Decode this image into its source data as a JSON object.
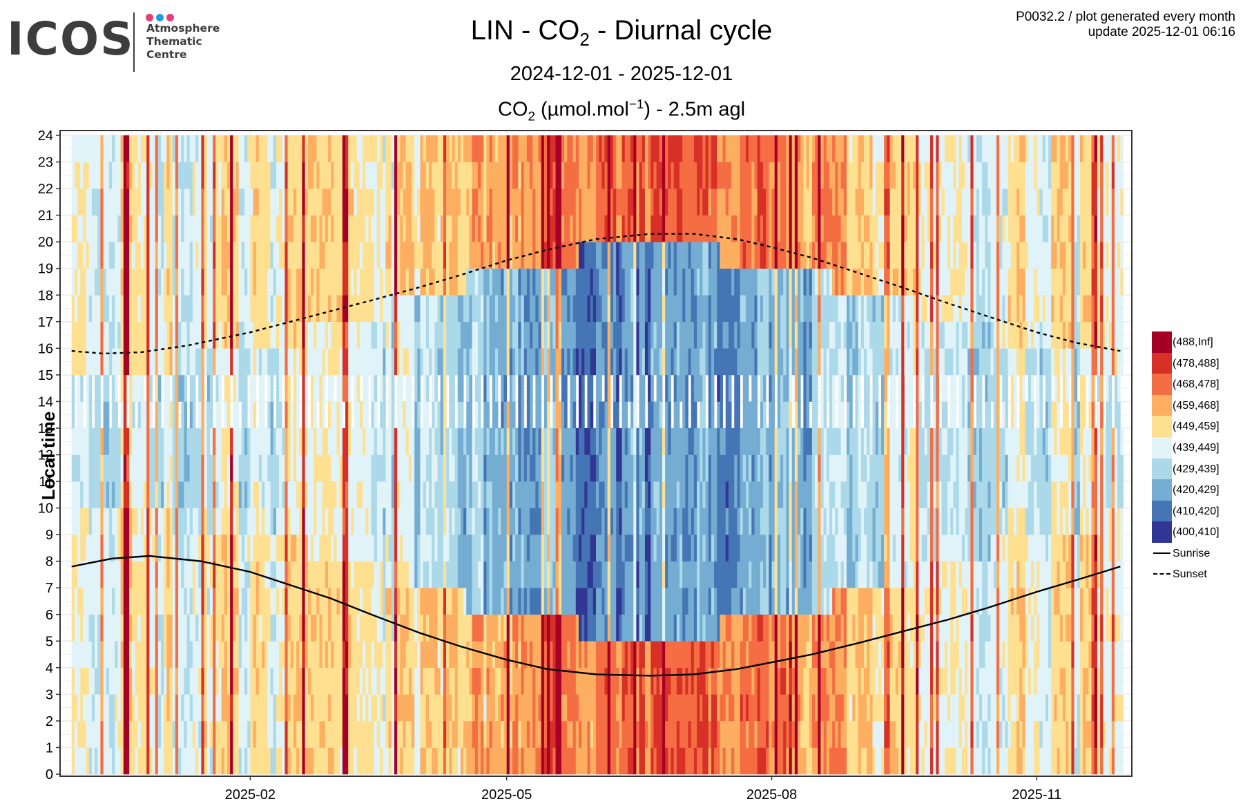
{
  "header": {
    "logo": {
      "wordmark": "ICOS",
      "subtitle_lines": [
        "Atmosphere",
        "Thematic",
        "Centre"
      ],
      "dot_colors": [
        "#e63c7a",
        "#1e9be6",
        "#e63c7a"
      ]
    },
    "meta_line1": "P0032.2 / plot generated every month",
    "meta_line2": "update  2025-12-01 06:16"
  },
  "chart_data": {
    "type": "heatmap",
    "title": "LIN - CO2 - Diurnal cycle",
    "title_parts": {
      "pre": "LIN - CO",
      "sub": "2",
      "post": " - Diurnal cycle"
    },
    "subtitle": "2024-12-01 - 2025-12-01",
    "variable_label": "CO2 (µmol.mol-1) - 2.5m agl",
    "variable_parts": {
      "pre": "CO",
      "sub": "2",
      "mid": " (µmol.mol",
      "sup": "−1",
      "post": ") - 2.5m agl"
    },
    "xlabel": "",
    "ylabel": "Local time",
    "x_start_date": "2024-12-01",
    "x_end_date": "2025-11-30",
    "xlim": [
      "2024-11-27",
      "2025-12-04"
    ],
    "ylim": [
      0,
      24
    ],
    "x_ticks": [
      {
        "date": "2025-02-01",
        "label": "2025-02"
      },
      {
        "date": "2025-05-01",
        "label": "2025-05"
      },
      {
        "date": "2025-08-01",
        "label": "2025-08"
      },
      {
        "date": "2025-11-01",
        "label": "2025-11"
      }
    ],
    "y_ticks": [
      0,
      1,
      2,
      3,
      4,
      5,
      6,
      7,
      8,
      9,
      10,
      11,
      12,
      13,
      14,
      15,
      16,
      17,
      18,
      19,
      20,
      21,
      22,
      23,
      24
    ],
    "grid": true,
    "legend_position": "right",
    "classes": [
      {
        "label": "(400,410]",
        "color": "#313695"
      },
      {
        "label": "(410,420]",
        "color": "#4575b4"
      },
      {
        "label": "(420,429]",
        "color": "#74add1"
      },
      {
        "label": "(429,439]",
        "color": "#abd9e9"
      },
      {
        "label": "(439,449]",
        "color": "#e0f3f8"
      },
      {
        "label": "(449,459]",
        "color": "#fee090"
      },
      {
        "label": "(459,468]",
        "color": "#fdae61"
      },
      {
        "label": "(468,478]",
        "color": "#f46d43"
      },
      {
        "label": "(478,488]",
        "color": "#d73027"
      },
      {
        "label": "(488,Inf]",
        "color": "#a50026"
      }
    ],
    "legend_order": [
      9,
      8,
      7,
      6,
      5,
      4,
      3,
      2,
      1,
      0
    ],
    "lines": [
      {
        "name": "Sunrise",
        "style": "solid",
        "points": [
          [
            "2024-12-01",
            7.8
          ],
          [
            "2024-12-15",
            8.1
          ],
          [
            "2024-12-28",
            8.2
          ],
          [
            "2025-01-15",
            8.0
          ],
          [
            "2025-02-01",
            7.6
          ],
          [
            "2025-02-15",
            7.1
          ],
          [
            "2025-03-01",
            6.6
          ],
          [
            "2025-03-15",
            6.0
          ],
          [
            "2025-04-01",
            5.3
          ],
          [
            "2025-04-15",
            4.8
          ],
          [
            "2025-05-01",
            4.3
          ],
          [
            "2025-05-15",
            3.95
          ],
          [
            "2025-06-01",
            3.75
          ],
          [
            "2025-06-20",
            3.7
          ],
          [
            "2025-07-05",
            3.75
          ],
          [
            "2025-07-20",
            3.95
          ],
          [
            "2025-08-01",
            4.2
          ],
          [
            "2025-08-15",
            4.5
          ],
          [
            "2025-09-01",
            4.95
          ],
          [
            "2025-09-15",
            5.35
          ],
          [
            "2025-10-01",
            5.8
          ],
          [
            "2025-10-15",
            6.25
          ],
          [
            "2025-11-01",
            6.85
          ],
          [
            "2025-11-15",
            7.3
          ],
          [
            "2025-11-30",
            7.8
          ]
        ]
      },
      {
        "name": "Sunset",
        "style": "dashed",
        "points": [
          [
            "2024-12-01",
            15.9
          ],
          [
            "2024-12-12",
            15.8
          ],
          [
            "2024-12-25",
            15.85
          ],
          [
            "2025-01-10",
            16.1
          ],
          [
            "2025-02-01",
            16.6
          ],
          [
            "2025-02-15",
            17.0
          ],
          [
            "2025-03-01",
            17.4
          ],
          [
            "2025-03-15",
            17.8
          ],
          [
            "2025-04-01",
            18.3
          ],
          [
            "2025-04-15",
            18.75
          ],
          [
            "2025-05-01",
            19.3
          ],
          [
            "2025-05-15",
            19.7
          ],
          [
            "2025-06-01",
            20.1
          ],
          [
            "2025-06-20",
            20.3
          ],
          [
            "2025-07-05",
            20.3
          ],
          [
            "2025-07-20",
            20.1
          ],
          [
            "2025-08-01",
            19.8
          ],
          [
            "2025-08-15",
            19.4
          ],
          [
            "2025-09-01",
            18.8
          ],
          [
            "2025-09-15",
            18.3
          ],
          [
            "2025-10-01",
            17.7
          ],
          [
            "2025-10-15",
            17.2
          ],
          [
            "2025-11-01",
            16.6
          ],
          [
            "2025-11-15",
            16.2
          ],
          [
            "2025-11-30",
            15.9
          ]
        ]
      }
    ],
    "cells_encoding": "one string per day starting x_start_date; 24 chars for hours 0..23; digit = class index (0=(400,410] .. 9=(488,Inf]); '-' = no data",
    "days": []
  }
}
